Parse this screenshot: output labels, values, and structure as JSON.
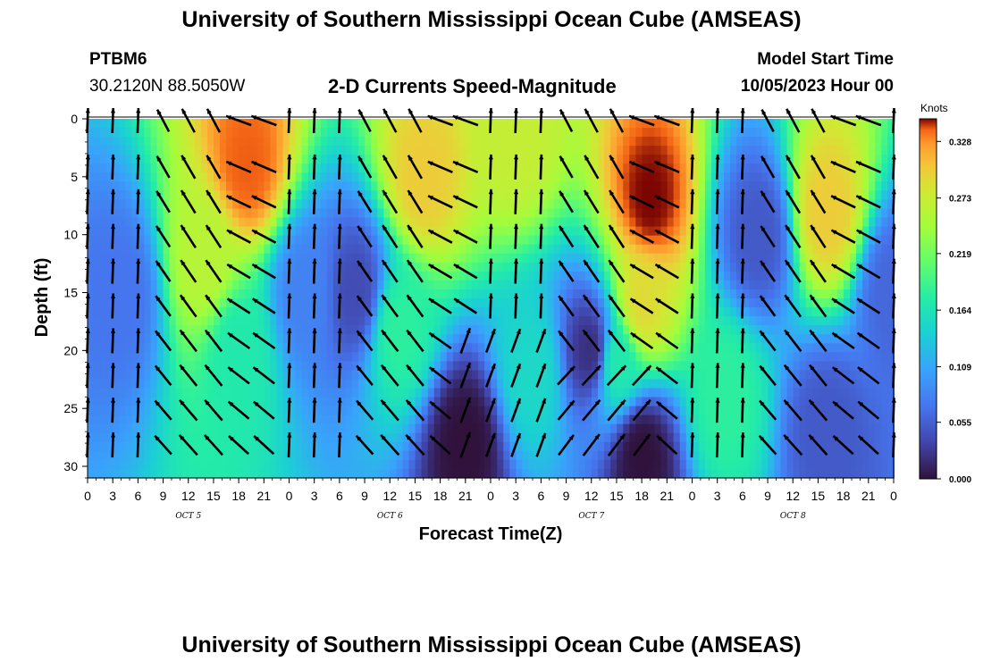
{
  "header": {
    "title": "University of Southern Mississippi Ocean Cube (AMSEAS)",
    "station_id": "PTBM6",
    "station_coords": "30.2120N  88.5050W",
    "plot_title": "2-D Currents Speed-Magnitude",
    "start_label": "Model Start Time",
    "start_value": "10/05/2023 Hour 00"
  },
  "footer": {
    "title": "University of Southern Mississippi Ocean Cube (AMSEAS)"
  },
  "chart_data": {
    "type": "heatmap",
    "xlabel": "Forecast Time(Z)",
    "ylabel": "Depth (ft)",
    "x_hours_range": [
      0,
      96
    ],
    "ylim": [
      0,
      31
    ],
    "y_inverted": true,
    "x_ticks": [
      "0",
      "3",
      "6",
      "9",
      "12",
      "15",
      "18",
      "21",
      "0",
      "3",
      "6",
      "9",
      "12",
      "15",
      "18",
      "21",
      "0",
      "3",
      "6",
      "9",
      "12",
      "15",
      "18",
      "21",
      "0",
      "3",
      "6",
      "9",
      "12",
      "15",
      "18",
      "21",
      "0"
    ],
    "y_ticks": [
      "0",
      "5",
      "10",
      "15",
      "20",
      "25",
      "30"
    ],
    "date_labels": [
      {
        "label": "OCT 5",
        "hour": 12
      },
      {
        "label": "OCT 6",
        "hour": 36
      },
      {
        "label": "OCT 7",
        "hour": 60
      },
      {
        "label": "OCT 8",
        "hour": 84
      }
    ],
    "colorbar": {
      "title": "Knots",
      "range": [
        0,
        0.35
      ],
      "ticks": [
        "0.328",
        "0.273",
        "0.219",
        "0.164",
        "0.109",
        "0.055",
        "0.000"
      ]
    },
    "speed_hotspots": [
      {
        "hour": 19,
        "depth": 4,
        "speed": 0.34
      },
      {
        "hour": 14,
        "depth": 12,
        "speed": 0.26
      },
      {
        "hour": 18,
        "depth": 20,
        "speed": 0.17
      },
      {
        "hour": 40,
        "depth": 5,
        "speed": 0.3
      },
      {
        "hour": 37,
        "depth": 18,
        "speed": 0.18
      },
      {
        "hour": 51,
        "depth": 1,
        "speed": 0.27
      },
      {
        "hour": 67,
        "depth": 7,
        "speed": 0.35
      },
      {
        "hour": 66,
        "depth": 16,
        "speed": 0.29
      },
      {
        "hour": 63,
        "depth": 21,
        "speed": 0.17
      },
      {
        "hour": 88,
        "depth": 8,
        "speed": 0.3
      },
      {
        "hour": 76,
        "depth": 24,
        "speed": 0.18
      },
      {
        "hour": 53,
        "depth": 22,
        "speed": 0.15
      }
    ],
    "speed_lows": [
      {
        "hour": 4,
        "depth": 15,
        "speed": 0.07
      },
      {
        "hour": 26,
        "depth": 15,
        "speed": 0.08
      },
      {
        "hour": 32,
        "depth": 15,
        "speed": 0.04
      },
      {
        "hour": 45,
        "depth": 28,
        "speed": 0.0
      },
      {
        "hour": 60,
        "depth": 20,
        "speed": 0.02
      },
      {
        "hour": 66,
        "depth": 29,
        "speed": 0.0
      },
      {
        "hour": 80,
        "depth": 10,
        "speed": 0.05
      },
      {
        "hour": 88,
        "depth": 27,
        "speed": 0.05
      },
      {
        "hour": 96,
        "depth": 15,
        "speed": 0.06
      }
    ],
    "vector_depths": [
      0,
      4,
      7,
      10,
      13,
      16,
      19,
      22,
      25,
      28
    ]
  }
}
